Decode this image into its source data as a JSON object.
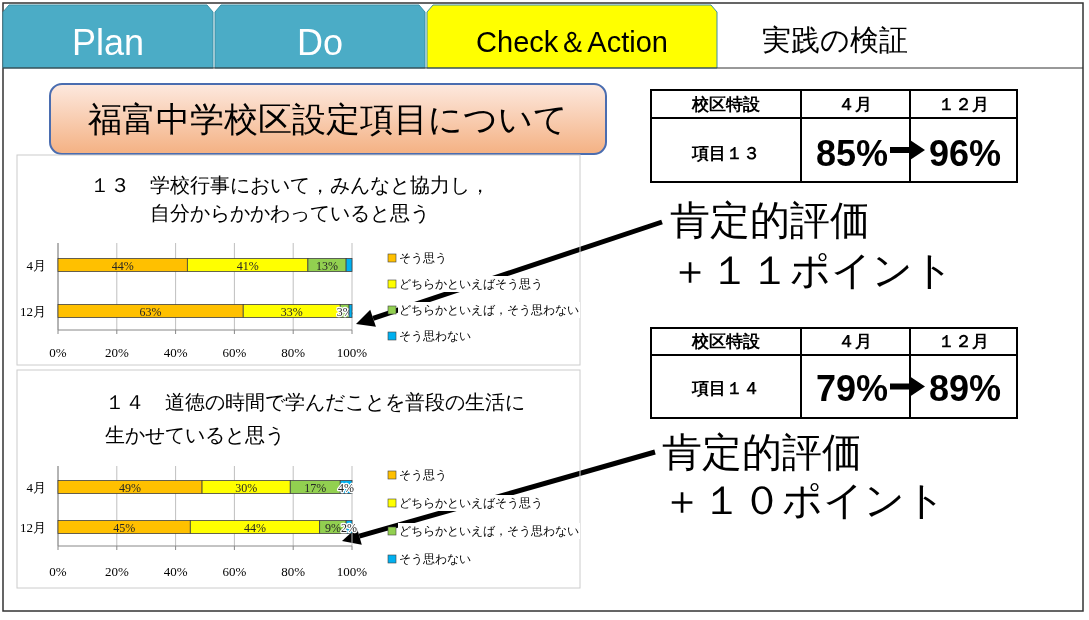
{
  "chart_data": [
    {
      "type": "other",
      "title": "福富中学校区設定項目について",
      "annotations": [
        "Plan",
        "Do",
        "Check＆Action",
        "実践の検証",
        "校区特設",
        "４月",
        "１２月",
        "項目１３",
        "85%",
        "96%",
        "肯定的評価",
        "＋１１ポイント",
        "校区特設",
        "４月",
        "１２月",
        "項目１４",
        "79%",
        "89%",
        "肯定的評価",
        "＋１０ポイント"
      ]
    },
    {
      "type": "bar",
      "orientation": "horizontal",
      "stacked": true,
      "title": "１３　学校行事において，みんなと協力し，",
      "subtitle": "自分からかかわっていると思う",
      "categories": [
        "4月",
        "12月"
      ],
      "xlim": [
        0,
        100
      ],
      "xticks": [
        {
          "value": 0,
          "label": "0%"
        },
        {
          "value": 20,
          "label": "20%"
        },
        {
          "value": 40,
          "label": "40%"
        },
        {
          "value": 60,
          "label": "60%"
        },
        {
          "value": 80,
          "label": "80%"
        },
        {
          "value": 100,
          "label": "100%"
        }
      ],
      "grid": "x",
      "legend": "right",
      "series": [
        {
          "name": "そう思う",
          "color": "#ffc000",
          "values": [
            44,
            63
          ],
          "value_labels": [
            "44%",
            "63%"
          ]
        },
        {
          "name": "どちらかといえばそう思う",
          "color": "#ffff00",
          "values": [
            41,
            33
          ],
          "value_labels": [
            "41%",
            "33%"
          ]
        },
        {
          "name": "どちらかといえば，そう思わない",
          "color": "#92d050",
          "values": [
            13,
            3
          ],
          "value_labels": [
            "13%",
            "3%"
          ]
        },
        {
          "name": "そう思わない",
          "color": "#00b0f0",
          "values": [
            2,
            1
          ],
          "value_labels": [
            null,
            null
          ]
        }
      ]
    },
    {
      "type": "bar",
      "orientation": "horizontal",
      "stacked": true,
      "title": "１４　道徳の時間で学んだことを普段の生活に",
      "subtitle": "生かせていると思う",
      "categories": [
        "4月",
        "12月"
      ],
      "xlim": [
        0,
        100
      ],
      "xticks": [
        {
          "value": 0,
          "label": "0%"
        },
        {
          "value": 20,
          "label": "20%"
        },
        {
          "value": 40,
          "label": "40%"
        },
        {
          "value": 60,
          "label": "60%"
        },
        {
          "value": 80,
          "label": "80%"
        },
        {
          "value": 100,
          "label": "100%"
        }
      ],
      "grid": "x",
      "legend": "right",
      "series": [
        {
          "name": "そう思う",
          "color": "#ffc000",
          "values": [
            49,
            45
          ],
          "value_labels": [
            "49%",
            "45%"
          ]
        },
        {
          "name": "どちらかといえばそう思う",
          "color": "#ffff00",
          "values": [
            30,
            44
          ],
          "value_labels": [
            "30%",
            "44%"
          ]
        },
        {
          "name": "どちらかといえば，そう思わない",
          "color": "#92d050",
          "values": [
            17,
            9
          ],
          "value_labels": [
            "17%",
            "9%"
          ]
        },
        {
          "name": "そう思わない",
          "color": "#00b0f0",
          "values": [
            4,
            2
          ],
          "value_labels": [
            "4%",
            "2%"
          ]
        }
      ]
    }
  ]
}
